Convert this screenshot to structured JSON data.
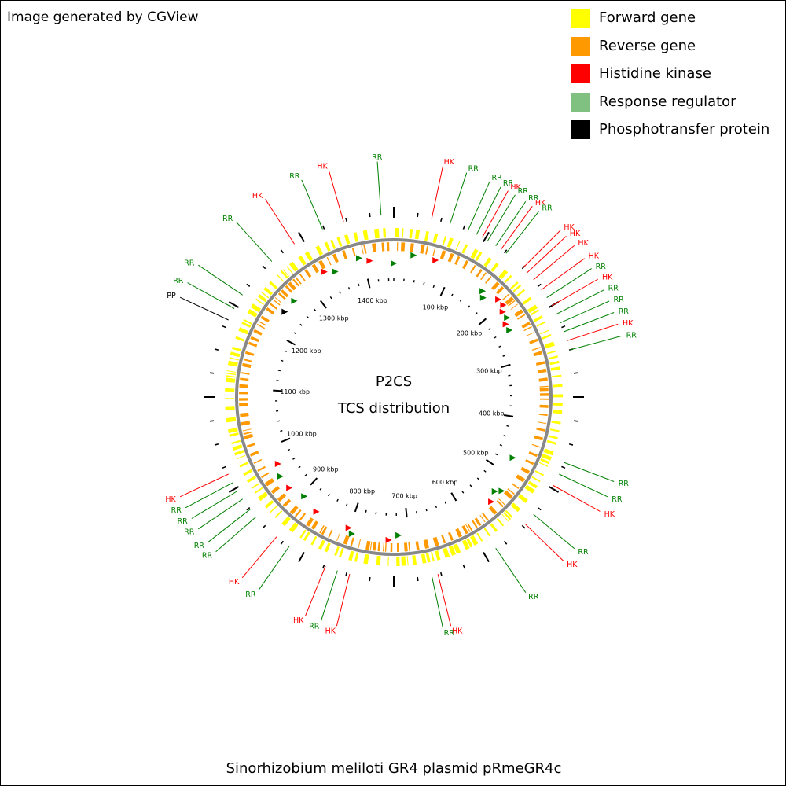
{
  "header": {
    "generated_by": "Image generated by CGView"
  },
  "legend": [
    {
      "label": "Forward gene",
      "color": "#ffff00"
    },
    {
      "label": "Reverse gene",
      "color": "#ff9900"
    },
    {
      "label": "Histidine kinase",
      "color": "#ff0000"
    },
    {
      "label": "Response regulator",
      "color": "#80c080"
    },
    {
      "label": "Phosphotransfer protein",
      "color": "#000000"
    }
  ],
  "center": {
    "line1": "P2CS",
    "line2": "TCS distribution"
  },
  "caption": "Sinorhizobium meliloti GR4 plasmid pRmeGR4c",
  "colors": {
    "backbone": "#888888",
    "forward": "#ffff00",
    "reverse": "#ff9900",
    "hk": "#ff0000",
    "rr": "#008000",
    "pp": "#000000"
  },
  "map": {
    "total_kbp": 1450,
    "scale_labels": [
      "100 kbp",
      "200 kbp",
      "300 kbp",
      "400 kbp",
      "500 kbp",
      "600 kbp",
      "700 kbp",
      "800 kbp",
      "900 kbp",
      "1000 kbp",
      "1100 kbp",
      "1200 kbp",
      "1300 kbp",
      "1400 kbp"
    ],
    "scale_values": [
      100,
      200,
      300,
      400,
      500,
      600,
      700,
      800,
      900,
      1000,
      1100,
      1200,
      1300,
      1400
    ]
  },
  "tcs_labels": [
    {
      "text": "RR",
      "type": "rr",
      "angle": -4
    },
    {
      "text": "HK",
      "type": "hk",
      "angle": 12
    },
    {
      "text": "RR",
      "type": "rr",
      "angle": 18
    },
    {
      "text": "RR",
      "type": "rr",
      "angle": 24
    },
    {
      "text": "RR",
      "type": "rr",
      "angle": 27
    },
    {
      "text": "HK",
      "type": "hk",
      "angle": 29
    },
    {
      "text": "RR",
      "type": "rr",
      "angle": 31
    },
    {
      "text": "RR",
      "type": "rr",
      "angle": 34
    },
    {
      "text": "HK",
      "type": "hk",
      "angle": 36
    },
    {
      "text": "RR",
      "type": "rr",
      "angle": 38
    },
    {
      "text": "HK",
      "type": "hk",
      "angle": 45
    },
    {
      "text": "HK",
      "type": "hk",
      "angle": 47
    },
    {
      "text": "HK",
      "type": "hk",
      "angle": 50
    },
    {
      "text": "HK",
      "type": "hk",
      "angle": 54
    },
    {
      "text": "RR",
      "type": "rr",
      "angle": 57
    },
    {
      "text": "HK",
      "type": "hk",
      "angle": 60
    },
    {
      "text": "RR",
      "type": "rr",
      "angle": 63
    },
    {
      "text": "RR",
      "type": "rr",
      "angle": 66
    },
    {
      "text": "RR",
      "type": "rr",
      "angle": 69
    },
    {
      "text": "HK",
      "type": "hk",
      "angle": 72
    },
    {
      "text": "RR",
      "type": "rr",
      "angle": 75
    },
    {
      "text": "RR",
      "type": "rr",
      "angle": 111
    },
    {
      "text": "RR",
      "type": "rr",
      "angle": 115
    },
    {
      "text": "HK",
      "type": "hk",
      "angle": 119
    },
    {
      "text": "RR",
      "type": "rr",
      "angle": 130
    },
    {
      "text": "HK",
      "type": "hk",
      "angle": 134
    },
    {
      "text": "RR",
      "type": "rr",
      "angle": 146
    },
    {
      "text": "HK",
      "type": "hk",
      "angle": 166
    },
    {
      "text": "RR",
      "type": "rr",
      "angle": 168
    },
    {
      "text": "HK",
      "type": "hk",
      "angle": 194
    },
    {
      "text": "RR",
      "type": "rr",
      "angle": 198
    },
    {
      "text": "HK",
      "type": "hk",
      "angle": 202
    },
    {
      "text": "RR",
      "type": "rr",
      "angle": 215
    },
    {
      "text": "HK",
      "type": "hk",
      "angle": 220
    },
    {
      "text": "RR",
      "type": "rr",
      "angle": 229
    },
    {
      "text": "RR",
      "type": "rr",
      "angle": 232
    },
    {
      "text": "RR",
      "type": "rr",
      "angle": 236
    },
    {
      "text": "RR",
      "type": "rr",
      "angle": 239
    },
    {
      "text": "RR",
      "type": "rr",
      "angle": 242
    },
    {
      "text": "HK",
      "type": "hk",
      "angle": 245
    },
    {
      "text": "PP",
      "type": "pp",
      "angle": 295
    },
    {
      "text": "RR",
      "type": "rr",
      "angle": 299
    },
    {
      "text": "RR",
      "type": "rr",
      "angle": 304
    },
    {
      "text": "RR",
      "type": "rr",
      "angle": 318
    },
    {
      "text": "HK",
      "type": "hk",
      "angle": 327
    },
    {
      "text": "RR",
      "type": "rr",
      "angle": 337
    },
    {
      "text": "HK",
      "type": "hk",
      "angle": 344
    }
  ],
  "inner_markers": [
    {
      "angle": 17,
      "type": "hk"
    },
    {
      "angle": 8,
      "type": "rr"
    },
    {
      "angle": 0,
      "type": "rr"
    },
    {
      "angle": -14,
      "type": "rr"
    },
    {
      "angle": -10,
      "type": "hk"
    },
    {
      "angle": -25,
      "type": "rr"
    },
    {
      "angle": -29,
      "type": "hk"
    },
    {
      "angle": -46,
      "type": "rr"
    },
    {
      "angle": -52,
      "type": "pp"
    },
    {
      "angle": 40,
      "type": "rr"
    },
    {
      "angle": 42,
      "type": "rr"
    },
    {
      "angle": 47,
      "type": "hk"
    },
    {
      "angle": 50,
      "type": "hk"
    },
    {
      "angle": 52,
      "type": "hk"
    },
    {
      "angle": 55,
      "type": "rr"
    },
    {
      "angle": 57,
      "type": "hk"
    },
    {
      "angle": 60,
      "type": "rr"
    },
    {
      "angle": 117,
      "type": "rr"
    },
    {
      "angle": 131,
      "type": "rr"
    },
    {
      "angle": 133,
      "type": "rr"
    },
    {
      "angle": 137,
      "type": "hk"
    },
    {
      "angle": 178,
      "type": "rr"
    },
    {
      "angle": 182,
      "type": "hk"
    },
    {
      "angle": 197,
      "type": "rr"
    },
    {
      "angle": 199,
      "type": "hk"
    },
    {
      "angle": 214,
      "type": "hk"
    },
    {
      "angle": 222,
      "type": "rr"
    },
    {
      "angle": 229,
      "type": "hk"
    },
    {
      "angle": 235,
      "type": "rr"
    },
    {
      "angle": 240,
      "type": "hk"
    }
  ]
}
